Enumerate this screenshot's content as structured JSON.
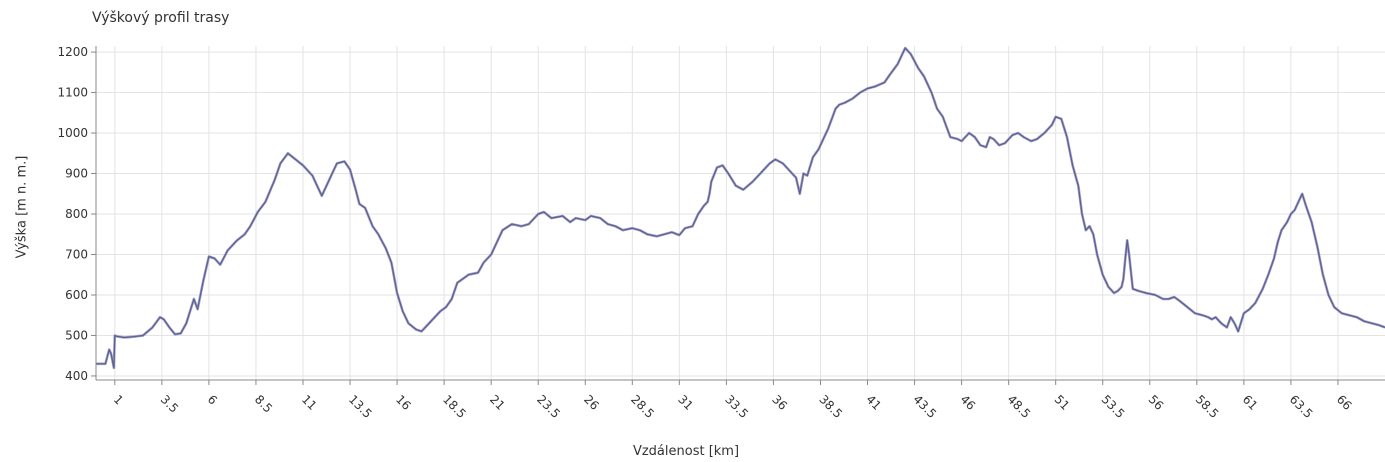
{
  "chart_data": {
    "type": "line",
    "title": "Výškový profil trasy",
    "xlabel": "Vzdálenost [km]",
    "ylabel": "Výška [m n. m.]",
    "xlim": [
      0,
      68.5
    ],
    "ylim": [
      390,
      1215
    ],
    "yticks": [
      400,
      500,
      600,
      700,
      800,
      900,
      1000,
      1100,
      1200
    ],
    "xticks": [
      1,
      3.5,
      6,
      8.5,
      11,
      13.5,
      16,
      18.5,
      21,
      23.5,
      26,
      28.5,
      31,
      33.5,
      36,
      38.5,
      41,
      43.5,
      46,
      48.5,
      51,
      53.5,
      56,
      58.5,
      61,
      63.5,
      66
    ],
    "xtick_labels": [
      "1",
      "3.5",
      "6",
      "8.5",
      "11",
      "13.5",
      "16",
      "18.5",
      "21",
      "23.5",
      "26",
      "28.5",
      "31",
      "33.5",
      "36",
      "38.5",
      "41",
      "43.5",
      "46",
      "48.5",
      "51",
      "53.5",
      "56",
      "58.5",
      "61",
      "63.5",
      "66"
    ],
    "grid": true,
    "line_color": "#5c5f8f",
    "series": [
      {
        "x": [
          0,
          0.5,
          0.7,
          0.8,
          0.95,
          1.0,
          1.1,
          1.5,
          2.0,
          2.5,
          3.0,
          3.4,
          3.6,
          3.9,
          4.2,
          4.5,
          4.8,
          5.0,
          5.2,
          5.4,
          5.7,
          6.0,
          6.3,
          6.6,
          7.0,
          7.5,
          7.9,
          8.2,
          8.6,
          9.0,
          9.5,
          9.8,
          10.2,
          10.6,
          11.0,
          11.5,
          11.8,
          12.0,
          12.3,
          12.6,
          12.8,
          13.2,
          13.5,
          13.8,
          14.0,
          14.3,
          14.7,
          15.0,
          15.4,
          15.7,
          16.0,
          16.3,
          16.6,
          17.0,
          17.3,
          17.6,
          18.0,
          18.3,
          18.6,
          18.9,
          19.2,
          19.5,
          19.8,
          20.3,
          20.6,
          21.0,
          21.3,
          21.6,
          22.1,
          22.6,
          23.0,
          23.5,
          23.8,
          24.2,
          24.8,
          25.2,
          25.5,
          26.0,
          26.3,
          26.8,
          27.2,
          27.6,
          28.0,
          28.5,
          28.9,
          29.3,
          29.8,
          30.2,
          30.6,
          31.0,
          31.3,
          31.7,
          32.0,
          32.3,
          32.5,
          32.6,
          32.7,
          33.0,
          33.3,
          33.6,
          34.0,
          34.4,
          34.9,
          35.3,
          35.8,
          36.1,
          36.5,
          36.8,
          37.1,
          37.2,
          37.4,
          37.6,
          37.8,
          38.1,
          38.4,
          38.7,
          38.9,
          39.1,
          39.3,
          39.5,
          39.8,
          40.2,
          40.6,
          41.0,
          41.4,
          41.9,
          42.2,
          42.6,
          43.0,
          43.3,
          43.7,
          44.0,
          44.4,
          44.7,
          45.0,
          45.4,
          45.8,
          46.0,
          46.4,
          46.7,
          47.0,
          47.3,
          47.5,
          47.7,
          48.0,
          48.3,
          48.7,
          49.0,
          49.3,
          49.7,
          50.0,
          50.4,
          50.8,
          51.0,
          51.3,
          51.6,
          51.9,
          52.2,
          52.4,
          52.6,
          52.8,
          53.0,
          53.2,
          53.5,
          53.8,
          54.1,
          54.3,
          54.5,
          54.6,
          54.7,
          54.8,
          54.9,
          55.1,
          55.4,
          55.8,
          56.3,
          56.7,
          57.0,
          57.3,
          57.6,
          58.0,
          58.4,
          58.8,
          59.1,
          59.3,
          59.5,
          59.8,
          60.1,
          60.3,
          60.5,
          60.7,
          61.0,
          61.3,
          61.6,
          62.0,
          62.3,
          62.6,
          62.8,
          63.0,
          63.3,
          63.5,
          63.7,
          63.9,
          64.1,
          64.3,
          64.6,
          64.9,
          65.2,
          65.5,
          65.8,
          66.2,
          66.6,
          67.0,
          67.4,
          67.8,
          68.2,
          68.5
        ],
        "y": [
          430,
          430,
          465,
          455,
          420,
          500,
          498,
          495,
          497,
          500,
          520,
          545,
          540,
          520,
          503,
          505,
          530,
          560,
          590,
          565,
          635,
          695,
          690,
          675,
          710,
          735,
          750,
          770,
          805,
          830,
          885,
          925,
          950,
          935,
          920,
          895,
          865,
          845,
          875,
          905,
          925,
          930,
          910,
          860,
          825,
          815,
          770,
          750,
          715,
          680,
          605,
          560,
          530,
          515,
          510,
          525,
          545,
          560,
          570,
          590,
          630,
          640,
          650,
          655,
          680,
          700,
          730,
          760,
          775,
          770,
          775,
          800,
          805,
          790,
          795,
          780,
          790,
          785,
          795,
          790,
          775,
          770,
          760,
          765,
          760,
          750,
          745,
          750,
          755,
          748,
          765,
          770,
          800,
          820,
          830,
          850,
          880,
          915,
          920,
          900,
          870,
          860,
          880,
          900,
          925,
          935,
          925,
          910,
          895,
          890,
          850,
          900,
          895,
          940,
          960,
          990,
          1010,
          1035,
          1060,
          1070,
          1075,
          1085,
          1100,
          1110,
          1115,
          1125,
          1145,
          1170,
          1210,
          1195,
          1160,
          1140,
          1100,
          1060,
          1040,
          990,
          985,
          980,
          1000,
          990,
          970,
          965,
          990,
          985,
          970,
          975,
          995,
          1000,
          990,
          980,
          985,
          1000,
          1020,
          1040,
          1035,
          990,
          920,
          870,
          800,
          760,
          770,
          750,
          700,
          650,
          620,
          605,
          610,
          620,
          640,
          690,
          735,
          700,
          615,
          610,
          605,
          600,
          590,
          590,
          595,
          585,
          570,
          555,
          550,
          545,
          540,
          545,
          530,
          520,
          545,
          530,
          510,
          555,
          565,
          580,
          615,
          650,
          690,
          730,
          760,
          780,
          800,
          810,
          830,
          850,
          820,
          780,
          720,
          650,
          600,
          570,
          555,
          550,
          545,
          535,
          530,
          525,
          520
        ]
      }
    ]
  }
}
